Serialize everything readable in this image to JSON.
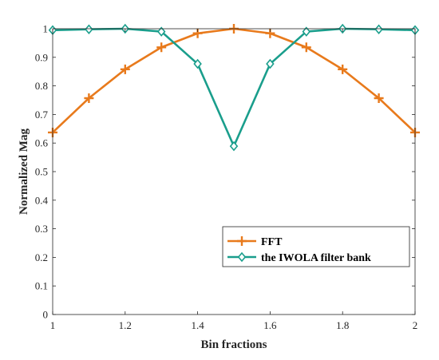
{
  "chart_data": {
    "type": "line",
    "title": "",
    "xlabel": "Bin fractions",
    "ylabel": "Normalized Mag",
    "xlim": [
      1,
      2
    ],
    "ylim": [
      0,
      1
    ],
    "x": [
      1.0,
      1.1,
      1.2,
      1.3,
      1.4,
      1.5,
      1.6,
      1.7,
      1.8,
      1.9,
      2.0
    ],
    "xticks": [
      1,
      1.2,
      1.4,
      1.6,
      1.8,
      2
    ],
    "xtick_labels": [
      "1",
      "1.2",
      "1.4",
      "1.6",
      "1.8",
      "2"
    ],
    "yticks": [
      0,
      0.1,
      0.2,
      0.3,
      0.4,
      0.5,
      0.6,
      0.7,
      0.8,
      0.9,
      1
    ],
    "ytick_labels": [
      "0",
      "0.1",
      "0.2",
      "0.3",
      "0.4",
      "0.5",
      "0.6",
      "0.7",
      "0.8",
      "0.9",
      "1"
    ],
    "grid": false,
    "legend_position": "bottom-right",
    "series": [
      {
        "name": "FFT",
        "color": "#e87a1c",
        "marker": "plus",
        "values": [
          0.637,
          0.757,
          0.858,
          0.935,
          0.984,
          1.0,
          0.984,
          0.935,
          0.858,
          0.757,
          0.637
        ]
      },
      {
        "name": "the IWOLA filter bank",
        "color": "#1a9e8c",
        "marker": "diamond",
        "values": [
          0.995,
          0.998,
          1.0,
          0.99,
          0.877,
          0.589,
          0.877,
          0.99,
          1.0,
          0.998,
          0.995
        ]
      }
    ]
  }
}
